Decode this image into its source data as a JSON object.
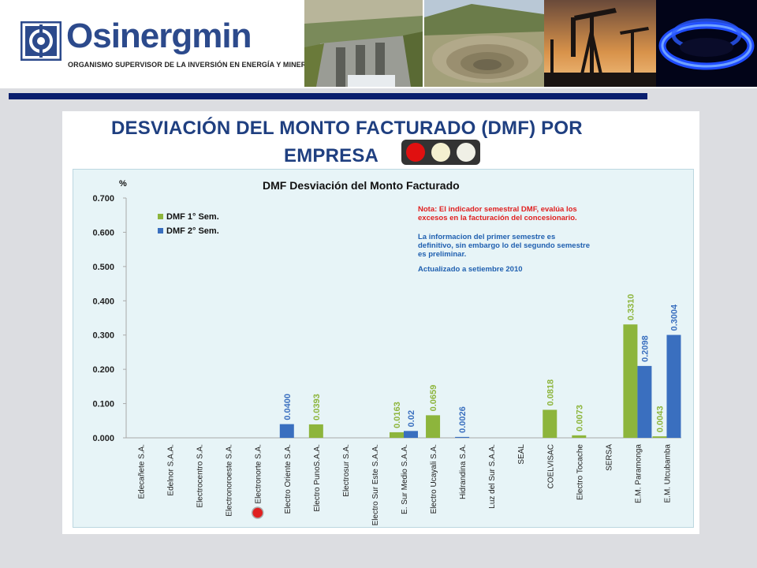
{
  "header": {
    "logo_name": "Osinergmin",
    "logo_subtitle": "ORGANISMO SUPERVISOR DE LA INVERSIÓN EN ENERGÍA Y MINERÍA",
    "photos": [
      "hydro-dam",
      "open-pit-mine",
      "oil-pumpjacks",
      "gas-flame"
    ],
    "colors": {
      "brand": "#2c4a8c",
      "rule": "#0a1f6e"
    }
  },
  "slide": {
    "title_line1": "DESVIACIÓN DEL MONTO FACTURADO (DMF) POR",
    "title_line2": "EMPRESA",
    "traffic_light": [
      "red",
      "off",
      "off"
    ]
  },
  "chart_data": {
    "type": "bar",
    "title": "DMF Desviación del Monto Facturado",
    "ylabel": "%",
    "ylim": [
      0,
      0.7
    ],
    "y_ticks": [
      "0.000",
      "0.100",
      "0.200",
      "0.300",
      "0.400",
      "0.500",
      "0.600",
      "0.700"
    ],
    "grid": false,
    "legend_position": "top-left",
    "categories": [
      "Edecañete S.A.",
      "Edelnor S.A.A.",
      "Electrocentro S.A.",
      "Electronoroeste S.A.",
      "Electronorte S.A.",
      "Electro Oriente S.A.",
      "Electro PunoS.A.A.",
      "Electrosur S.A.",
      "Electro Sur Este S.A.A.",
      "E. Sur Medio S.A.A.",
      "Electro Ucayali S.A.",
      "Hidrandina S.A.",
      "Luz del Sur S.A.A.",
      "SEAL",
      "COELVISAC",
      "Electro Tocache",
      "SERSA",
      "E.M. Paramonga",
      "E.M. Utcubamba"
    ],
    "series": [
      {
        "name": "DMF 1° Sem.",
        "color": "#8db53c",
        "values": [
          null,
          null,
          null,
          null,
          null,
          null,
          0.0393,
          null,
          null,
          0.0163,
          0.0659,
          null,
          null,
          null,
          0.0818,
          0.0073,
          null,
          0.331,
          0.0043
        ],
        "labels": [
          "",
          "",
          "",
          "",
          "",
          "",
          "0.0393",
          "",
          "",
          "0.0163",
          "0.0659",
          "",
          "",
          "",
          "0.0818",
          "0.0073",
          "",
          "0.3310",
          "0.0043"
        ]
      },
      {
        "name": "DMF 2° Sem.",
        "color": "#3a6fbf",
        "values": [
          null,
          null,
          null,
          null,
          null,
          0.04,
          null,
          null,
          null,
          0.02,
          null,
          0.0026,
          null,
          null,
          null,
          null,
          null,
          0.2098,
          0.3004
        ],
        "labels": [
          "",
          "",
          "",
          "",
          "",
          "0.0400",
          "",
          "",
          "",
          "0.02",
          "",
          "0.0026",
          "",
          "",
          "",
          "",
          "",
          "0.2098",
          "0.3004"
        ]
      }
    ],
    "notes": [
      {
        "text": "Nota: El indicador semestral DMF, evalúa los",
        "color": "#e02020"
      },
      {
        "text": "excesos en la facturación del concesionario.",
        "color": "#e02020"
      },
      {
        "text": "La informacion del primer semestre es",
        "color": "#2060b0"
      },
      {
        "text": "definitivo, sin embargo lo del segundo semestre",
        "color": "#2060b0"
      },
      {
        "text": "es preliminar.",
        "color": "#2060b0"
      },
      {
        "text": "Actualizado a setiembre 2010",
        "color": "#2060b0"
      }
    ],
    "highlight_marker": {
      "category": "Electronorte S.A.",
      "color": "#e02020"
    }
  }
}
